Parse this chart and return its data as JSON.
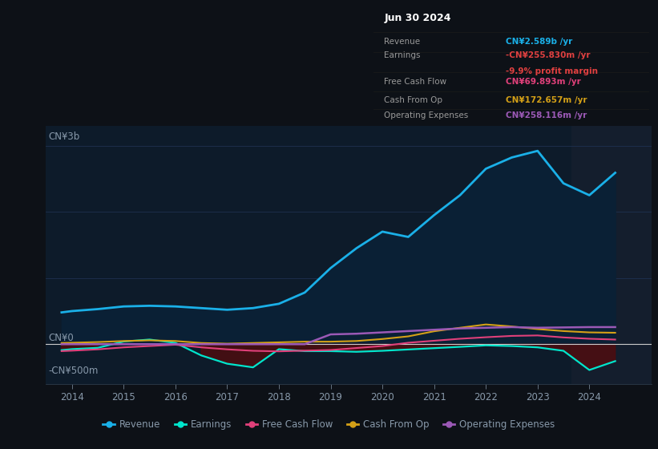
{
  "background_color": "#0d1117",
  "plot_bg_color": "#0d1b2a",
  "grid_color": "#1e3050",
  "text_color": "#8899aa",
  "ylim": [
    -600,
    3300
  ],
  "xlim": [
    2013.5,
    2025.2
  ],
  "xticks": [
    2014,
    2015,
    2016,
    2017,
    2018,
    2019,
    2020,
    2021,
    2022,
    2023,
    2024
  ],
  "ylabel_top": "CN¥3b",
  "ylabel_zero": "CN¥0",
  "ylabel_neg": "-CN¥500m",
  "zero_val": 0,
  "neg_val": -500,
  "years": [
    2013.8,
    2014.0,
    2014.5,
    2015.0,
    2015.5,
    2016.0,
    2016.5,
    2017.0,
    2017.5,
    2018.0,
    2018.5,
    2019.0,
    2019.5,
    2020.0,
    2020.5,
    2021.0,
    2021.5,
    2022.0,
    2022.5,
    2023.0,
    2023.5,
    2024.0,
    2024.5
  ],
  "revenue": [
    480,
    500,
    530,
    570,
    580,
    570,
    545,
    520,
    545,
    610,
    780,
    1150,
    1450,
    1700,
    1620,
    1950,
    2250,
    2650,
    2820,
    2920,
    2430,
    2250,
    2589
  ],
  "earnings": [
    -90,
    -75,
    -55,
    40,
    70,
    20,
    -170,
    -295,
    -350,
    -75,
    -105,
    -105,
    -115,
    -100,
    -80,
    -60,
    -40,
    -18,
    -28,
    -48,
    -100,
    -390,
    -255.83
  ],
  "free_cash_flow": [
    -105,
    -98,
    -78,
    -48,
    -28,
    -8,
    -48,
    -78,
    -100,
    -108,
    -98,
    -88,
    -58,
    -28,
    22,
    52,
    82,
    105,
    125,
    132,
    102,
    82,
    69.893
  ],
  "cash_from_op": [
    18,
    22,
    32,
    48,
    58,
    48,
    18,
    8,
    18,
    28,
    38,
    38,
    48,
    78,
    118,
    195,
    248,
    298,
    268,
    228,
    198,
    178,
    172.657
  ],
  "operating_expenses": [
    0,
    0,
    0,
    0,
    0,
    0,
    0,
    0,
    0,
    0,
    0,
    148,
    158,
    178,
    198,
    218,
    238,
    248,
    258,
    248,
    253,
    258,
    258.116
  ],
  "revenue_color": "#1ab0e8",
  "revenue_fill": "#0a2035",
  "earnings_color": "#00e5cc",
  "free_cash_flow_color": "#e0407a",
  "cash_from_op_color": "#d4a017",
  "operating_expenses_color": "#9b59b6",
  "earnings_neg_fill": "#5a0a0a",
  "tooltip_bg": "#050a0f",
  "tooltip_border": "#333333",
  "tooltip_date": "Jun 30 2024",
  "tooltip_revenue_label": "Revenue",
  "tooltip_revenue_value": "CN¥2.589b /yr",
  "tooltip_revenue_color": "#1ab0e8",
  "tooltip_earnings_label": "Earnings",
  "tooltip_earnings_value": "-CN¥255.830m /yr",
  "tooltip_earnings_color": "#e04040",
  "tooltip_margin_value": "-9.9% profit margin",
  "tooltip_margin_color": "#e04040",
  "tooltip_fcf_label": "Free Cash Flow",
  "tooltip_fcf_value": "CN¥69.893m /yr",
  "tooltip_fcf_color": "#e0407a",
  "tooltip_cashop_label": "Cash From Op",
  "tooltip_cashop_value": "CN¥172.657m /yr",
  "tooltip_cashop_color": "#d4a017",
  "tooltip_opex_label": "Operating Expenses",
  "tooltip_opex_value": "CN¥258.116m /yr",
  "tooltip_opex_color": "#9b59b6",
  "legend_labels": [
    "Revenue",
    "Earnings",
    "Free Cash Flow",
    "Cash From Op",
    "Operating Expenses"
  ],
  "legend_colors": [
    "#1ab0e8",
    "#00e5cc",
    "#e0407a",
    "#d4a017",
    "#9b59b6"
  ]
}
